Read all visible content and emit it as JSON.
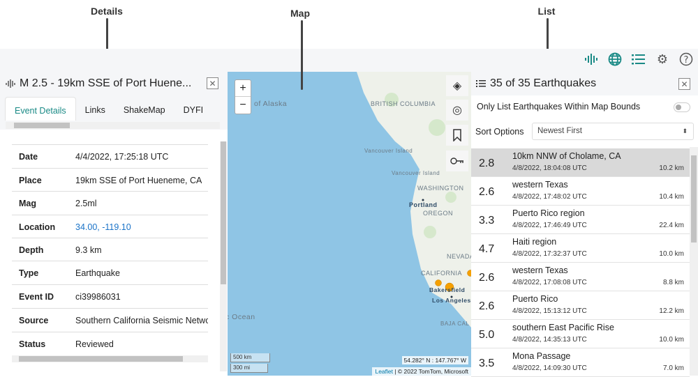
{
  "annotations": {
    "details": "Details",
    "map": "Map",
    "list": "List"
  },
  "toolbar": {
    "icons": [
      "seismic-wave-icon",
      "globe-icon",
      "list-icon",
      "gear-icon",
      "help-icon"
    ],
    "accent": "#1a8a86"
  },
  "details": {
    "title": "M 2.5 - 19km SSE of Port Huene...",
    "close": "✕",
    "tabs": [
      "Event Details",
      "Links",
      "ShakeMap",
      "DYFI"
    ],
    "rows": [
      {
        "label": "Date",
        "value": "4/4/2022, 17:25:18 UTC"
      },
      {
        "label": "Place",
        "value": "19km SSE of Port Hueneme, CA"
      },
      {
        "label": "Mag",
        "value": "2.5ml"
      },
      {
        "label": "Location",
        "value": "34.00, -119.10"
      },
      {
        "label": "Depth",
        "value": "9.3 km"
      },
      {
        "label": "Type",
        "value": "Earthquake"
      },
      {
        "label": "Event ID",
        "value": "ci39986031"
      },
      {
        "label": "Source",
        "value": "Southern California Seismic Network"
      },
      {
        "label": "Status",
        "value": "Reviewed"
      }
    ]
  },
  "map": {
    "zoom_in": "+",
    "zoom_out": "−",
    "labels": {
      "gulf": "ulf of Alaska",
      "bc": "BRITISH COLUMBIA",
      "vi1": "Vancouver Island",
      "vi2": "Vancouver Island",
      "wa": "WASHINGTON",
      "portland": "Portland",
      "or": "OREGON",
      "nv": "NEVADA",
      "ca": "CALIFORNIA",
      "bakersfield": "Bakersfield",
      "la": "Los Angeles",
      "baja": "BAJA CAL",
      "ocean": "c Ocean"
    },
    "scale_km": "500 km",
    "scale_mi": "300 mi",
    "coords": "54.282° N : 147.767° W",
    "attribution_link": "Leaflet",
    "attribution": " | © 2022 TomTom, Microsoft",
    "water": "#8fc5e5",
    "land": "#eef1ea",
    "quake": "#f5a000"
  },
  "list": {
    "title": "35 of 35 Earthquakes",
    "close": "✕",
    "bounds_label": "Only List Earthquakes Within Map Bounds",
    "bounds_on": false,
    "sort_label": "Sort Options",
    "sort_value": "Newest First",
    "items": [
      {
        "mag": "2.8",
        "title": "10km NNW of Cholame, CA",
        "date": "4/8/2022, 18:04:08 UTC",
        "depth": "10.2 km"
      },
      {
        "mag": "2.6",
        "title": "western Texas",
        "date": "4/8/2022, 17:48:02 UTC",
        "depth": "10.4 km"
      },
      {
        "mag": "3.3",
        "title": "Puerto Rico region",
        "date": "4/8/2022, 17:46:49 UTC",
        "depth": "22.4 km"
      },
      {
        "mag": "4.7",
        "title": "Haiti region",
        "date": "4/8/2022, 17:32:37 UTC",
        "depth": "10.0 km"
      },
      {
        "mag": "2.6",
        "title": "western Texas",
        "date": "4/8/2022, 17:08:08 UTC",
        "depth": "8.8 km"
      },
      {
        "mag": "2.6",
        "title": "Puerto Rico",
        "date": "4/8/2022, 15:13:12 UTC",
        "depth": "12.2 km"
      },
      {
        "mag": "5.0",
        "title": "southern East Pacific Rise",
        "date": "4/8/2022, 14:35:13 UTC",
        "depth": "10.0 km"
      },
      {
        "mag": "3.5",
        "title": "Mona Passage",
        "date": "4/8/2022, 14:09:30 UTC",
        "depth": "7.0 km"
      }
    ]
  }
}
